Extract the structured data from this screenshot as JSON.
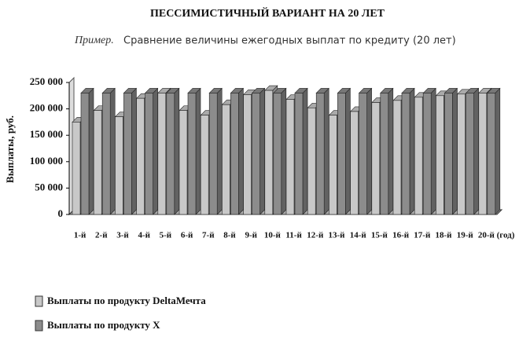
{
  "chart_data": {
    "type": "bar3d",
    "title": "ПЕССИМИСТИЧНЫЙ ВАРИАНТ НА 20 ЛЕТ",
    "subtitle_lead": "Пример.",
    "subtitle": "Сравнение величины ежегодных выплат по кредиту (20 лет)",
    "y_label": "Выплаты, руб.",
    "x_label": "(год)",
    "categories": [
      "1-й",
      "2-й",
      "3-й",
      "4-й",
      "5-й",
      "6-й",
      "7-й",
      "8-й",
      "9-й",
      "10-й",
      "11-й",
      "12-й",
      "13-й",
      "14-й",
      "15-й",
      "16-й",
      "17-й",
      "18-й",
      "19-й",
      "20-й"
    ],
    "series": [
      {
        "name": "Выплаты по продукту DeltaМечта",
        "color": "#c8c8c8",
        "values": [
          175000,
          197000,
          185000,
          220000,
          230000,
          197000,
          188000,
          208000,
          227000,
          235000,
          218000,
          202000,
          188000,
          195000,
          212000,
          216000,
          222000,
          225000,
          228000,
          230000
        ]
      },
      {
        "name": "Выплаты по продукту X",
        "color": "#8c8c8c",
        "values": [
          230000,
          230000,
          230000,
          230000,
          230000,
          230000,
          230000,
          230000,
          230000,
          230000,
          230000,
          230000,
          230000,
          230000,
          230000,
          230000,
          230000,
          230000,
          230000,
          230000
        ]
      }
    ],
    "ylim": [
      0,
      250000
    ],
    "yticks": [
      0,
      {
        "value": 50000,
        "label": "50 000"
      },
      {
        "value": 100000,
        "label": "100 000"
      },
      {
        "value": 150000,
        "label": "150 000"
      },
      {
        "value": 200000,
        "label": "200 000"
      },
      {
        "value": 250000,
        "label": "250 000"
      }
    ]
  }
}
